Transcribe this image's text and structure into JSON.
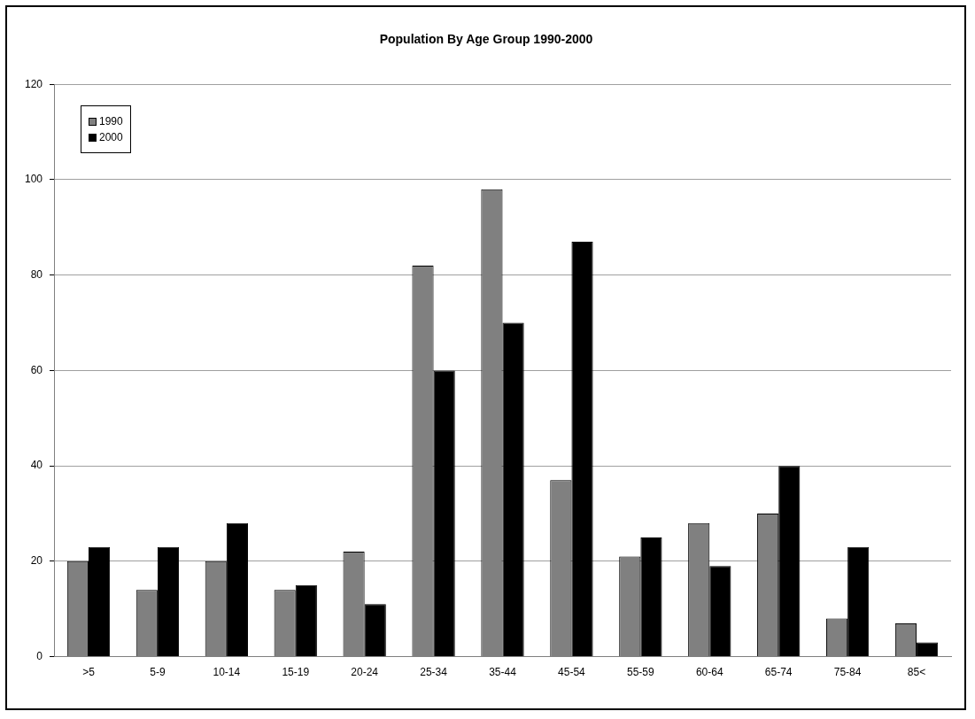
{
  "chart_data": {
    "type": "bar",
    "title": "Population By Age Group 1990-2000",
    "categories": [
      ">5",
      "5-9",
      "10-14",
      "15-19",
      "20-24",
      "25-34",
      "35-44",
      "45-54",
      "55-59",
      "60-64",
      "65-74",
      "75-84",
      "85<"
    ],
    "series": [
      {
        "name": "1990",
        "color": "#808080",
        "values": [
          20,
          14,
          20,
          14,
          22,
          82,
          98,
          37,
          21,
          28,
          30,
          8,
          7
        ]
      },
      {
        "name": "2000",
        "color": "#000000",
        "values": [
          23,
          23,
          28,
          15,
          11,
          60,
          70,
          87,
          25,
          19,
          40,
          23,
          3
        ]
      }
    ],
    "ylim": [
      0,
      120
    ],
    "yticks": [
      0,
      20,
      40,
      60,
      80,
      100,
      120
    ],
    "grid": "y",
    "legend": "top left"
  }
}
